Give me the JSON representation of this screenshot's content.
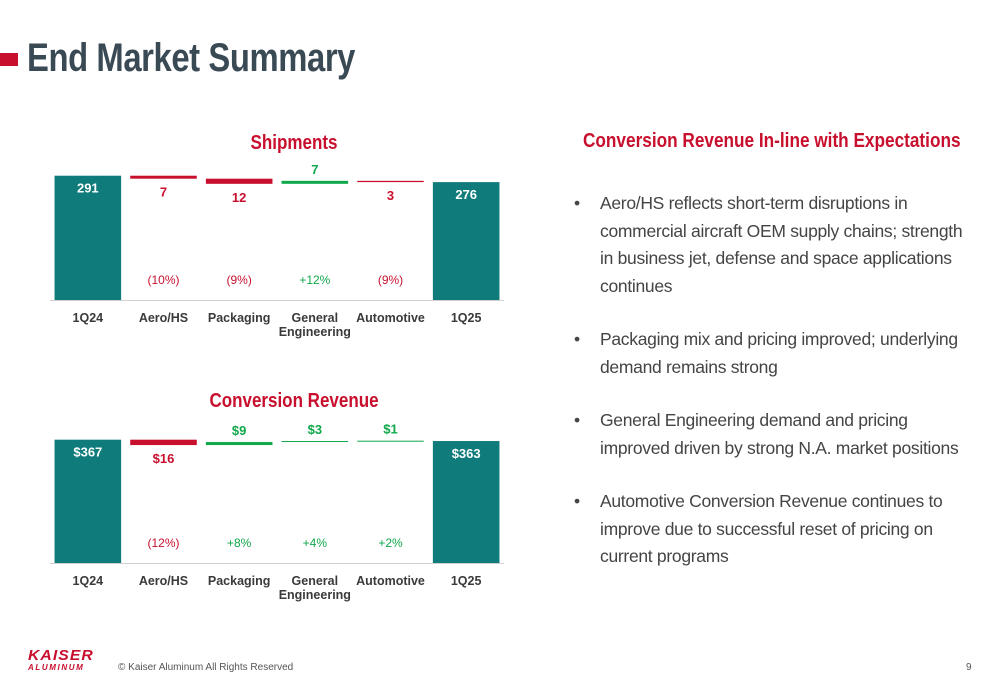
{
  "page": {
    "title": "End Market Summary",
    "copyright": "© Kaiser Aluminum All Rights Reserved",
    "page_number": "9",
    "logo": {
      "top": "KAISER",
      "bottom": "ALUMINUM"
    }
  },
  "colors": {
    "teal": "#0f7b7b",
    "red": "#c8102e",
    "green": "#0fa84a",
    "title_gray": "#3a4a55"
  },
  "right_panel": {
    "title": "Conversion Revenue In-line with Expectations",
    "bullets": [
      "Aero/HS reflects short-term disruptions in commercial aircraft OEM supply chains; strength in business jet, defense and space applications continues",
      "Packaging mix and pricing improved; underlying demand remains strong",
      "General Engineering demand and pricing improved driven by strong N.A. market positions",
      "Automotive Conversion Revenue continues to improve due to successful reset of pricing on current programs"
    ]
  },
  "chart_data": [
    {
      "type": "bar",
      "subtype": "waterfall",
      "title": "Shipments",
      "categories": [
        "1Q24",
        "Aero/HS",
        "Packaging",
        "General Engineering",
        "Automotive",
        "1Q25"
      ],
      "values": [
        291,
        -7,
        -12,
        7,
        -3,
        276
      ],
      "kinds": [
        "total",
        "delta",
        "delta",
        "delta",
        "delta",
        "total"
      ],
      "value_labels": [
        "291",
        "7",
        "12",
        "7",
        "3",
        "276"
      ],
      "percent_labels": [
        "",
        "(10%)",
        "(9%)",
        "+12%",
        "(9%)",
        ""
      ],
      "ylim": [
        0,
        295
      ]
    },
    {
      "type": "bar",
      "subtype": "waterfall",
      "title": "Conversion Revenue",
      "categories": [
        "1Q24",
        "Aero/HS",
        "Packaging",
        "General Engineering",
        "Automotive",
        "1Q25"
      ],
      "values": [
        367,
        -16,
        9,
        3,
        1,
        363
      ],
      "kinds": [
        "total",
        "delta",
        "delta",
        "delta",
        "delta",
        "total"
      ],
      "value_labels": [
        "$367",
        "$16",
        "$9",
        "$3",
        "$1",
        "$363"
      ],
      "percent_labels": [
        "",
        "(12%)",
        "+8%",
        "+4%",
        "+2%",
        ""
      ],
      "ylim": [
        0,
        375
      ]
    }
  ]
}
